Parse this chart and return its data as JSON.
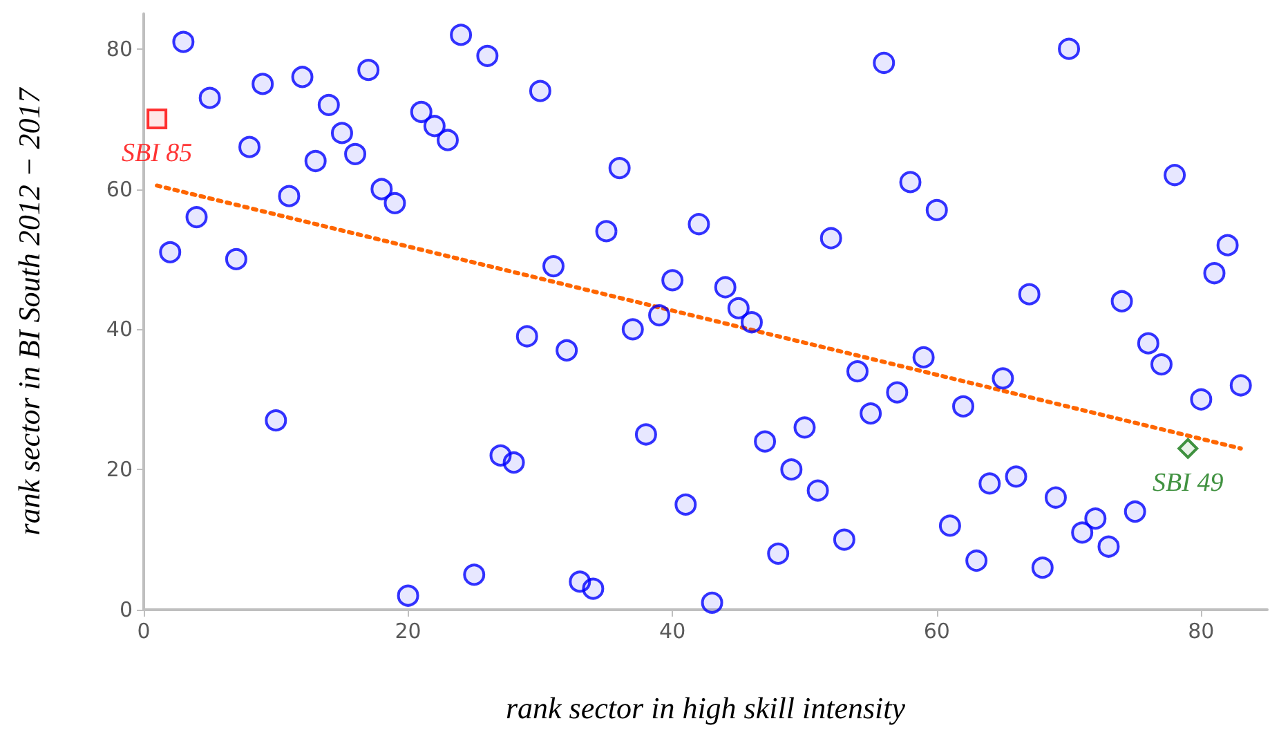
{
  "chart_data": {
    "type": "scatter",
    "xlabel": "rank sector in high skill intensity",
    "ylabel": "rank sector in BI South 2012 − 2017",
    "xlim": [
      0,
      85
    ],
    "ylim": [
      0,
      85
    ],
    "xticks": [
      0,
      20,
      40,
      60,
      80
    ],
    "yticks": [
      0,
      20,
      40,
      60,
      80
    ],
    "grid": false,
    "legend": false,
    "marker": "circle",
    "series": [
      {
        "color": "#0000ff",
        "x": [
          2,
          3,
          4,
          5,
          7,
          8,
          9,
          10,
          11,
          12,
          13,
          14,
          15,
          16,
          17,
          18,
          19,
          20,
          21,
          22,
          23,
          24,
          25,
          26,
          27,
          28,
          29,
          30,
          31,
          32,
          33,
          34,
          35,
          36,
          37,
          38,
          39,
          40,
          41,
          42,
          43,
          44,
          45,
          46,
          47,
          48,
          49,
          50,
          51,
          52,
          53,
          54,
          55,
          56,
          57,
          58,
          59,
          60,
          61,
          62,
          63,
          64,
          65,
          66,
          67,
          68,
          69,
          70,
          71,
          72,
          73,
          74,
          75,
          76,
          77,
          78,
          80,
          81,
          82,
          83
        ],
        "values": [
          51,
          81,
          56,
          73,
          50,
          66,
          75,
          27,
          59,
          76,
          64,
          72,
          68,
          65,
          77,
          60,
          58,
          2,
          71,
          69,
          67,
          82,
          5,
          79,
          22,
          21,
          39,
          74,
          49,
          37,
          4,
          3,
          54,
          63,
          40,
          25,
          42,
          47,
          15,
          55,
          1,
          46,
          43,
          41,
          24,
          8,
          20,
          26,
          17,
          53,
          10,
          34,
          28,
          78,
          31,
          61,
          36,
          57,
          12,
          29,
          7,
          18,
          33,
          19,
          45,
          6,
          16,
          80,
          11,
          13,
          9,
          44,
          14,
          38,
          35,
          62,
          30,
          48,
          52,
          32
        ]
      },
      {
        "name": "SBI 85",
        "color": "#ff0000",
        "marker": "square",
        "x": [
          1
        ],
        "values": [
          70
        ]
      },
      {
        "name": "SBI 49",
        "color": "#117711",
        "marker": "diamond",
        "x": [
          79
        ],
        "values": [
          23
        ]
      },
      {
        "type": "line",
        "color": "#ff6600",
        "line_style": "dotted",
        "marker": "none",
        "x": [
          1,
          83
        ],
        "values": [
          60.5,
          23
        ]
      }
    ]
  }
}
